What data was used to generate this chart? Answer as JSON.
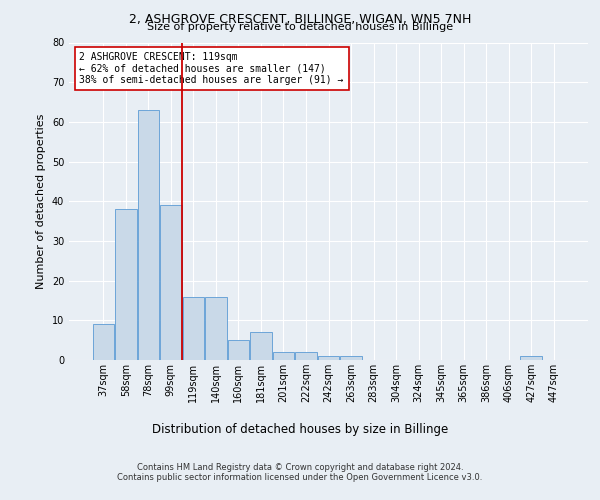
{
  "title_line1": "2, ASHGROVE CRESCENT, BILLINGE, WIGAN, WN5 7NH",
  "title_line2": "Size of property relative to detached houses in Billinge",
  "xlabel": "Distribution of detached houses by size in Billinge",
  "ylabel": "Number of detached properties",
  "categories": [
    "37sqm",
    "58sqm",
    "78sqm",
    "99sqm",
    "119sqm",
    "140sqm",
    "160sqm",
    "181sqm",
    "201sqm",
    "222sqm",
    "242sqm",
    "263sqm",
    "283sqm",
    "304sqm",
    "324sqm",
    "345sqm",
    "365sqm",
    "386sqm",
    "406sqm",
    "427sqm",
    "447sqm"
  ],
  "values": [
    9,
    38,
    63,
    39,
    16,
    16,
    5,
    7,
    2,
    2,
    1,
    1,
    0,
    0,
    0,
    0,
    0,
    0,
    0,
    1,
    0
  ],
  "bar_color": "#c9d9e8",
  "bar_edge_color": "#5b9bd5",
  "vline_index": 4,
  "vline_color": "#cc0000",
  "ylim": [
    0,
    80
  ],
  "yticks": [
    0,
    10,
    20,
    30,
    40,
    50,
    60,
    70,
    80
  ],
  "annotation_text": "2 ASHGROVE CRESCENT: 119sqm\n← 62% of detached houses are smaller (147)\n38% of semi-detached houses are larger (91) →",
  "annotation_box_facecolor": "#ffffff",
  "annotation_box_edgecolor": "#cc0000",
  "footer_line1": "Contains HM Land Registry data © Crown copyright and database right 2024.",
  "footer_line2": "Contains public sector information licensed under the Open Government Licence v3.0.",
  "background_color": "#e8eef4",
  "plot_bg_color": "#e8eef4",
  "grid_color": "#ffffff",
  "title1_fontsize": 9,
  "title2_fontsize": 8,
  "ylabel_fontsize": 8,
  "xlabel_fontsize": 8.5,
  "tick_fontsize": 7,
  "annotation_fontsize": 7,
  "footer_fontsize": 6
}
